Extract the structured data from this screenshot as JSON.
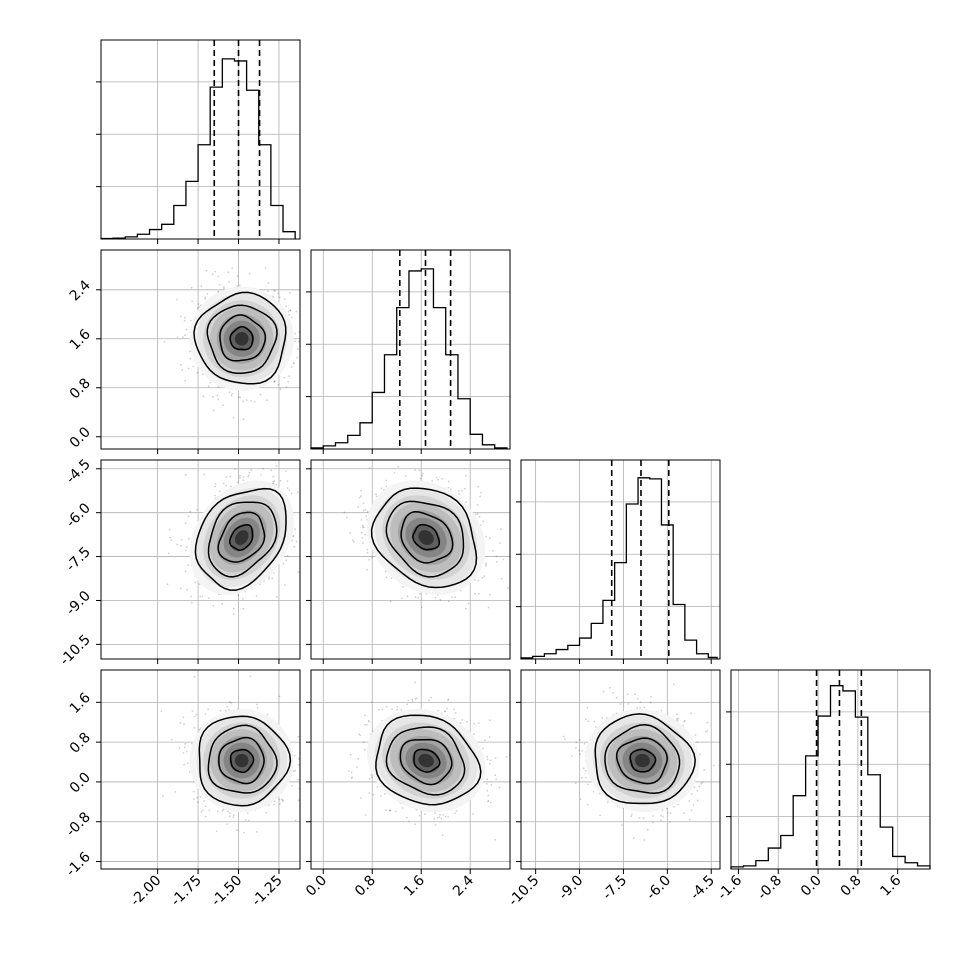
{
  "chart_data": {
    "type": "corner",
    "grid": true,
    "parameters": [
      {
        "range": [
          -2.35,
          -1.12
        ],
        "ticks": [
          "-2.00",
          "-1.75",
          "-1.50",
          "-1.25"
        ],
        "tick_values": [
          -2.0,
          -1.75,
          -1.5,
          -1.25
        ],
        "quantiles": [
          -1.65,
          -1.5,
          -1.37
        ],
        "hist_y_ticks": [
          500,
          1000,
          1500
        ],
        "hist_ymax": 1900,
        "hist": {
          "edges": [
            -2.35,
            -2.275,
            -2.2,
            -2.125,
            -2.05,
            -1.975,
            -1.9,
            -1.825,
            -1.75,
            -1.675,
            -1.6,
            -1.525,
            -1.45,
            -1.375,
            -1.3,
            -1.225,
            -1.15
          ],
          "counts": [
            5,
            8,
            20,
            45,
            90,
            140,
            320,
            550,
            900,
            1450,
            1720,
            1700,
            1420,
            900,
            320,
            70
          ]
        }
      },
      {
        "range": [
          -0.2,
          3.05
        ],
        "ticks": [
          "0.0",
          "0.8",
          "1.6",
          "2.4"
        ],
        "tick_values": [
          0.0,
          0.8,
          1.6,
          2.4
        ],
        "quantiles": [
          1.25,
          1.67,
          2.08
        ],
        "hist_y_ticks": [
          500,
          1000,
          1500
        ],
        "hist_ymax": 1900,
        "hist": {
          "edges": [
            -0.2,
            0.0,
            0.2,
            0.4,
            0.6,
            0.8,
            1.0,
            1.2,
            1.4,
            1.6,
            1.8,
            2.0,
            2.2,
            2.4,
            2.6,
            2.8,
            3.0
          ],
          "counts": [
            10,
            30,
            60,
            130,
            250,
            540,
            900,
            1350,
            1700,
            1720,
            1350,
            900,
            480,
            140,
            40,
            10
          ]
        }
      },
      {
        "range": [
          -11.0,
          -4.2
        ],
        "ticks": [
          "-10.5",
          "-9.0",
          "-7.5",
          "-6.0",
          "-4.5"
        ],
        "tick_values": [
          -10.5,
          -9.0,
          -7.5,
          -6.0,
          -4.5
        ],
        "quantiles": [
          -7.9,
          -6.9,
          -5.95
        ],
        "hist_y_ticks": [
          500,
          1000,
          1500
        ],
        "hist_ymax": 1900,
        "hist": {
          "edges": [
            -11.0,
            -10.6,
            -10.2,
            -9.8,
            -9.4,
            -9.0,
            -8.6,
            -8.2,
            -7.8,
            -7.4,
            -7.0,
            -6.6,
            -6.2,
            -5.8,
            -5.4,
            -5.0,
            -4.6,
            -4.3
          ],
          "counts": [
            10,
            25,
            50,
            90,
            130,
            200,
            340,
            560,
            920,
            1480,
            1730,
            1720,
            1280,
            520,
            180,
            50,
            15
          ]
        }
      },
      {
        "range": [
          -1.75,
          2.25
        ],
        "ticks": [
          "-1.6",
          "-0.8",
          "0.0",
          "0.8",
          "1.6"
        ],
        "tick_values": [
          -1.6,
          -0.8,
          0.0,
          0.8,
          1.6
        ],
        "quantiles": [
          -0.03,
          0.43,
          0.87
        ],
        "hist_y_ticks": [
          500,
          1000,
          1500
        ],
        "hist_ymax": 1900,
        "hist": {
          "edges": [
            -1.75,
            -1.5,
            -1.25,
            -1.0,
            -0.75,
            -0.5,
            -0.25,
            0.0,
            0.25,
            0.5,
            0.75,
            1.0,
            1.25,
            1.5,
            1.75,
            2.0,
            2.25
          ],
          "counts": [
            20,
            30,
            80,
            200,
            320,
            700,
            1080,
            1460,
            1750,
            1700,
            1450,
            900,
            400,
            120,
            60,
            30
          ]
        }
      }
    ],
    "pairs": [
      {
        "row": 1,
        "col": 0,
        "mean": [
          -1.48,
          1.6
        ],
        "sd": [
          0.14,
          0.37
        ],
        "rho": 0.0
      },
      {
        "row": 2,
        "col": 0,
        "mean": [
          -1.48,
          -6.85
        ],
        "sd": [
          0.14,
          0.85
        ],
        "rho": 0.28
      },
      {
        "row": 2,
        "col": 1,
        "mean": [
          1.68,
          -6.85
        ],
        "sd": [
          0.42,
          0.85
        ],
        "rho": -0.2
      },
      {
        "row": 3,
        "col": 0,
        "mean": [
          -1.48,
          0.43
        ],
        "sd": [
          0.14,
          0.45
        ],
        "rho": 0.0
      },
      {
        "row": 3,
        "col": 1,
        "mean": [
          1.68,
          0.43
        ],
        "sd": [
          0.42,
          0.45
        ],
        "rho": -0.15
      },
      {
        "row": 3,
        "col": 2,
        "mean": [
          -6.85,
          0.43
        ],
        "sd": [
          0.85,
          0.45
        ],
        "rho": -0.05
      }
    ],
    "contour_levels_sigma": [
      0.5,
      1.0,
      1.5,
      2.0
    ]
  }
}
